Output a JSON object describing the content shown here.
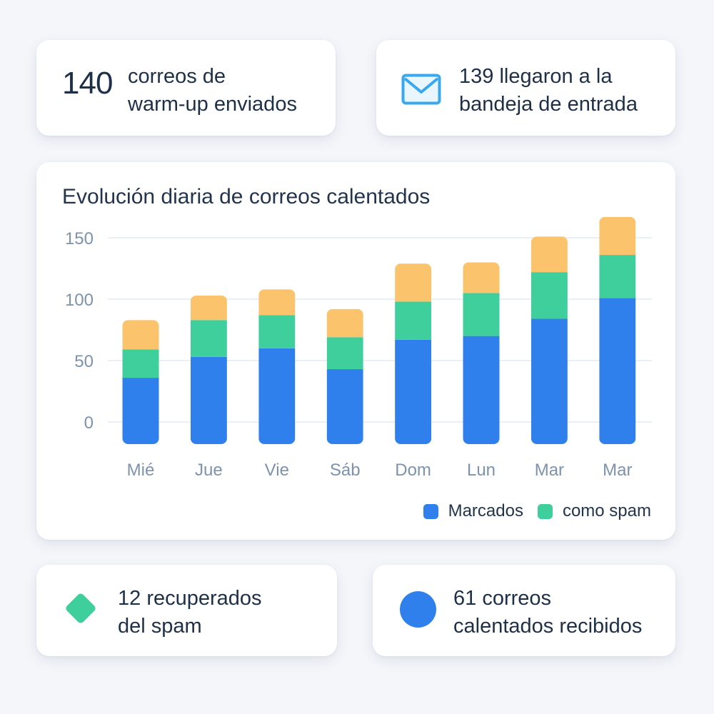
{
  "stats": {
    "sent_value": "140",
    "sent_text_1": "correos de",
    "sent_text_2": "warm-up enviados",
    "inbox_text_1": "139 llegaron a la",
    "inbox_text_2": "bandeja de entrada",
    "recovered_text_1": "12 recuperados",
    "recovered_text_2": "del spam",
    "received_text_1": "61 correos",
    "received_text_2": "calentados recibidos"
  },
  "icons": {
    "inbox": "mail-icon",
    "recovered": "diamond-icon",
    "received": "dot-icon"
  },
  "colors": {
    "blue": "#2f80ec",
    "green": "#3ecf9c",
    "orange": "#fbc36b",
    "mail_icon": "#3aa8ef"
  },
  "chart_data": {
    "type": "bar",
    "stacked": true,
    "title": "Evolución diaria de correos calentados",
    "xlabel": "",
    "ylabel": "",
    "categories": [
      "Mié",
      "Jue",
      "Vie",
      "Sáb",
      "Dom",
      "Lun",
      "Mar",
      "Mar"
    ],
    "yticks": [
      0,
      50,
      100,
      150
    ],
    "ylim": [
      -18,
      167
    ],
    "grid": true,
    "legend_position": "bottom-right",
    "series": [
      {
        "name": "Marcados",
        "color": "#2f80ec",
        "values": [
          54,
          71,
          78,
          61,
          85,
          88,
          102,
          119
        ]
      },
      {
        "name": "como spam",
        "color": "#3ecf9c",
        "values": [
          23,
          30,
          27,
          26,
          31,
          35,
          38,
          35
        ]
      },
      {
        "color": "#fbc36b",
        "values": [
          24,
          20,
          21,
          23,
          31,
          25,
          29,
          31
        ]
      }
    ]
  }
}
